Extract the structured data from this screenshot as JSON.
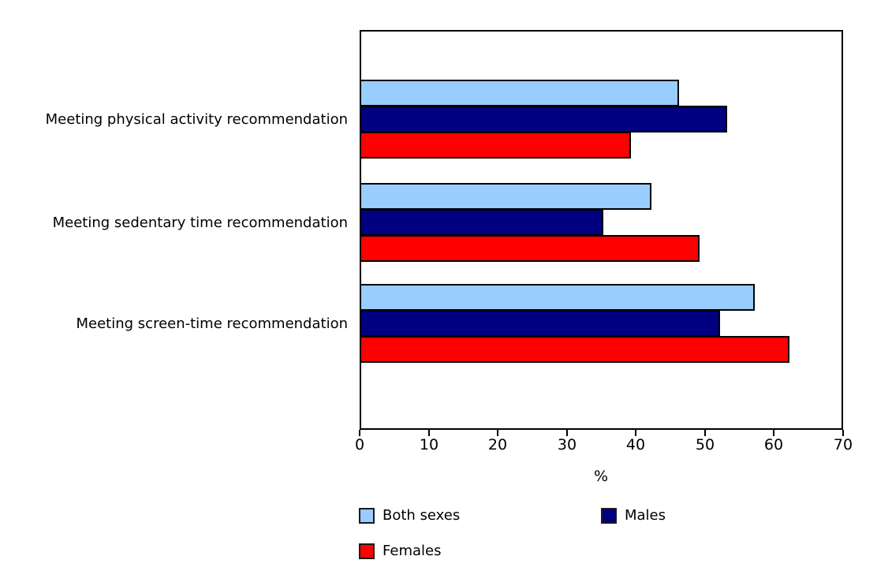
{
  "chart_data": {
    "type": "bar",
    "orientation": "horizontal",
    "title": "",
    "categories": [
      "Meeting physical activity recommendation",
      "Meeting sedentary time recommendation",
      "Meeting screen-time recommendation"
    ],
    "series": [
      {
        "name": "Both sexes",
        "color": "#99CCFF",
        "values": [
          46,
          42,
          57
        ]
      },
      {
        "name": "Males",
        "color": "#000080",
        "values": [
          53,
          35,
          52
        ]
      },
      {
        "name": "Females",
        "color": "#FF0000",
        "values": [
          39,
          49,
          62
        ]
      }
    ],
    "xlabel": "%",
    "ylabel": "",
    "xlim": [
      0,
      70
    ],
    "xticks": [
      0,
      10,
      20,
      30,
      40,
      50,
      60,
      70
    ],
    "grid": false,
    "legend_position": "bottom",
    "bar_border_color": "#000000",
    "plot_border_color": "#000000",
    "background_color": "#FFFFFF",
    "text_color": "#000000"
  }
}
